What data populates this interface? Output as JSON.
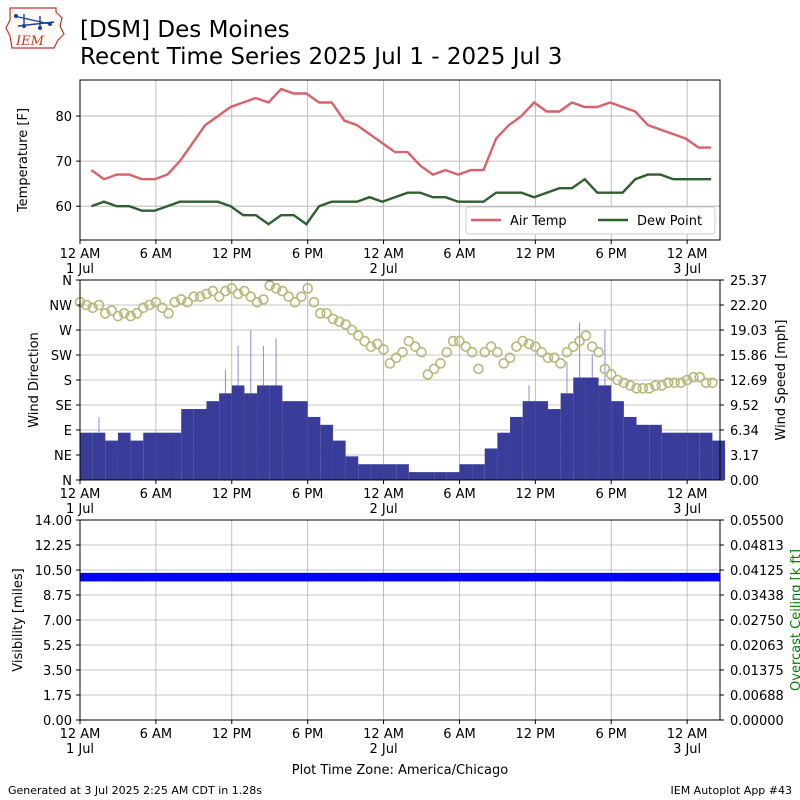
{
  "header": {
    "logo_text": "IEM",
    "title_line1": "[DSM] Des Moines",
    "title_line2": "Recent Time Series 2025 Jul 1 - 2025 Jul 3"
  },
  "footer": {
    "generated": "Generated at 3 Jul 2025 2:25 AM CDT in 1.28s",
    "app": "IEM Autoplot App #43",
    "timezone_label": "Plot Time Zone: America/Chicago"
  },
  "colors": {
    "air_temp": "#d9626a",
    "dew_point": "#2f5e2f",
    "wind_speed": "#393c99",
    "wind_dir": "#b7b879",
    "visibility": "#0000ff",
    "ceiling_label": "#008000",
    "grid": "#b0b0b0"
  },
  "chart_data": [
    {
      "type": "line",
      "ylabel": "Temperature [F]",
      "xlim": [
        0,
        50.6
      ],
      "ylim": [
        52.5,
        88
      ],
      "yticks": [
        60,
        70,
        80
      ],
      "xticks": [
        {
          "x": 0,
          "label": "12 AM",
          "sub": "1 Jul"
        },
        {
          "x": 6,
          "label": "6 AM",
          "sub": ""
        },
        {
          "x": 12,
          "label": "12 PM",
          "sub": ""
        },
        {
          "x": 18,
          "label": "6 PM",
          "sub": ""
        },
        {
          "x": 24,
          "label": "12 AM",
          "sub": "2 Jul"
        },
        {
          "x": 30,
          "label": "6 AM",
          "sub": ""
        },
        {
          "x": 36,
          "label": "12 PM",
          "sub": ""
        },
        {
          "x": 42,
          "label": "6 PM",
          "sub": ""
        },
        {
          "x": 48,
          "label": "12 AM",
          "sub": "3 Jul"
        }
      ],
      "legend_position": "lower-right",
      "series": [
        {
          "name": "Air Temp",
          "x": [
            0.9,
            1.9,
            2.9,
            3.9,
            4.9,
            5.9,
            6.9,
            7.9,
            8.9,
            9.9,
            10.9,
            11.9,
            12.9,
            13.9,
            14.9,
            15.9,
            16.9,
            17.9,
            18.9,
            19.9,
            20.9,
            21.9,
            22.9,
            23.9,
            24.9,
            25.9,
            26.9,
            27.9,
            28.9,
            29.9,
            30.9,
            31.9,
            32.9,
            33.9,
            34.9,
            35.9,
            36.9,
            37.9,
            38.9,
            39.9,
            40.9,
            41.9,
            42.9,
            43.9,
            44.9,
            45.9,
            46.9,
            47.9,
            48.9,
            49.9
          ],
          "y": [
            68,
            66,
            67,
            67,
            66,
            66,
            67,
            70,
            74,
            78,
            80,
            82,
            83,
            84,
            83,
            86,
            85,
            85,
            83,
            83,
            79,
            78,
            76,
            74,
            72,
            72,
            69,
            67,
            68,
            67,
            68,
            68,
            75,
            78,
            80,
            83,
            81,
            81,
            83,
            82,
            82,
            83,
            82,
            81,
            78,
            77,
            76,
            75,
            73,
            73
          ]
        },
        {
          "name": "Dew Point",
          "x": [
            0.9,
            1.9,
            2.9,
            3.9,
            4.9,
            5.9,
            6.9,
            7.9,
            8.9,
            9.9,
            10.9,
            11.9,
            12.9,
            13.9,
            14.9,
            15.9,
            16.9,
            17.9,
            18.9,
            19.9,
            20.9,
            21.9,
            22.9,
            23.9,
            24.9,
            25.9,
            26.9,
            27.9,
            28.9,
            29.9,
            30.9,
            31.9,
            32.9,
            33.9,
            34.9,
            35.9,
            36.9,
            37.9,
            38.9,
            39.9,
            40.9,
            41.9,
            42.9,
            43.9,
            44.9,
            45.9,
            46.9,
            47.9,
            48.9,
            49.9
          ],
          "y": [
            60,
            61,
            60,
            60,
            59,
            59,
            60,
            61,
            61,
            61,
            61,
            60,
            58,
            58,
            56,
            58,
            58,
            56,
            60,
            61,
            61,
            61,
            62,
            61,
            62,
            63,
            63,
            62,
            62,
            61,
            61,
            61,
            63,
            63,
            63,
            62,
            63,
            64,
            64,
            66,
            63,
            63,
            63,
            66,
            67,
            67,
            66,
            66,
            66,
            66
          ]
        }
      ]
    },
    {
      "type": "bar",
      "ylabel": "Wind Direction",
      "y2label": "Wind Speed [mph]",
      "xlim": [
        0,
        50.6
      ],
      "y_dir_ticks": [
        "N",
        "NE",
        "E",
        "SE",
        "S",
        "SW",
        "W",
        "NW",
        "N"
      ],
      "y_dir_range": [
        0,
        360
      ],
      "y2ticks": [
        "0.00",
        "3.17",
        "6.34",
        "9.52",
        "12.69",
        "15.86",
        "19.03",
        "22.20",
        "25.37"
      ],
      "y2lim": [
        0,
        25.37
      ],
      "xticks_same_as_panel1": true,
      "series": [
        {
          "name": "Wind Speed",
          "x": [
            0,
            1,
            2,
            3,
            4,
            5,
            6,
            7,
            8,
            9,
            10,
            11,
            12,
            13,
            14,
            15,
            16,
            17,
            18,
            19,
            20,
            21,
            22,
            23,
            24,
            25,
            26,
            27,
            28,
            29,
            30,
            31,
            32,
            33,
            34,
            35,
            36,
            37,
            38,
            39,
            40,
            41,
            42,
            43,
            44,
            45,
            46,
            47,
            48,
            49,
            50
          ],
          "values": [
            6,
            6,
            5,
            6,
            5,
            6,
            6,
            6,
            9,
            9,
            10,
            11,
            12,
            11,
            12,
            12,
            10,
            10,
            8,
            7,
            5,
            3,
            2,
            2,
            2,
            2,
            1,
            1,
            1,
            1,
            2,
            2,
            4,
            6,
            8,
            10,
            10,
            9,
            11,
            13,
            13,
            12,
            10,
            8,
            7,
            7,
            6,
            6,
            6,
            6,
            5
          ],
          "gusts": [
            0,
            8,
            0,
            0,
            0,
            0,
            0,
            0,
            0,
            0,
            0,
            14,
            17,
            19,
            17,
            18,
            0,
            0,
            0,
            0,
            0,
            0,
            0,
            0,
            0,
            0,
            0,
            0,
            0,
            0,
            0,
            0,
            0,
            0,
            0,
            12,
            0,
            0,
            15,
            20,
            16,
            19,
            0,
            0,
            0,
            0,
            0,
            0,
            0,
            0,
            0
          ]
        },
        {
          "name": "Wind Direction",
          "x": [
            0,
            0.5,
            1,
            1.5,
            2,
            2.5,
            3,
            3.5,
            4,
            4.5,
            5,
            5.5,
            6,
            6.5,
            7,
            7.5,
            8,
            8.5,
            9,
            9.5,
            10,
            10.5,
            11,
            11.5,
            12,
            12.5,
            13,
            13.5,
            14,
            14.5,
            15,
            15.5,
            16,
            16.5,
            17,
            17.5,
            18,
            18.5,
            19,
            19.5,
            20,
            20.5,
            21,
            21.5,
            22,
            22.5,
            23,
            23.5,
            24,
            24.5,
            25,
            25.5,
            26,
            26.5,
            27,
            27.5,
            28,
            28.5,
            29,
            29.5,
            30,
            30.5,
            31,
            31.5,
            32,
            32.5,
            33,
            33.5,
            34,
            34.5,
            35,
            35.5,
            36,
            36.5,
            37,
            37.5,
            38,
            38.5,
            39,
            39.5,
            40,
            40.5,
            41,
            41.5,
            42,
            42.5,
            43,
            43.5,
            44,
            44.5,
            45,
            45.5,
            46,
            46.5,
            47,
            47.5,
            48,
            48.5,
            49,
            49.5,
            50
          ],
          "values": [
            320,
            315,
            310,
            315,
            300,
            305,
            295,
            300,
            295,
            300,
            310,
            315,
            320,
            310,
            300,
            320,
            325,
            320,
            330,
            330,
            335,
            340,
            330,
            340,
            345,
            335,
            340,
            330,
            320,
            325,
            350,
            345,
            340,
            330,
            320,
            330,
            345,
            320,
            300,
            300,
            290,
            285,
            280,
            270,
            260,
            250,
            240,
            245,
            235,
            210,
            220,
            230,
            250,
            240,
            230,
            190,
            200,
            210,
            230,
            250,
            250,
            240,
            230,
            200,
            230,
            240,
            230,
            210,
            220,
            240,
            250,
            245,
            240,
            230,
            220,
            220,
            210,
            230,
            240,
            250,
            260,
            240,
            230,
            200,
            190,
            180,
            175,
            170,
            165,
            165,
            165,
            170,
            170,
            175,
            175,
            175,
            180,
            185,
            185,
            175,
            175
          ]
        }
      ]
    },
    {
      "type": "bar",
      "ylabel": "Visibility [miles]",
      "y2label": "Overcast Ceiling [k ft]",
      "xlim": [
        0,
        50.6
      ],
      "ylim": [
        0,
        14
      ],
      "yticks": [
        "0.00",
        "1.75",
        "3.50",
        "5.25",
        "7.00",
        "8.75",
        "10.50",
        "12.25",
        "14.00"
      ],
      "y2lim": [
        0,
        0.055
      ],
      "y2ticks": [
        "0.00000",
        "0.00688",
        "0.01375",
        "0.02063",
        "0.02750",
        "0.03438",
        "0.04125",
        "0.04813",
        "0.05500"
      ],
      "series": [
        {
          "name": "Visibility",
          "x_range": [
            0,
            50.6
          ],
          "value": 10
        }
      ]
    }
  ]
}
